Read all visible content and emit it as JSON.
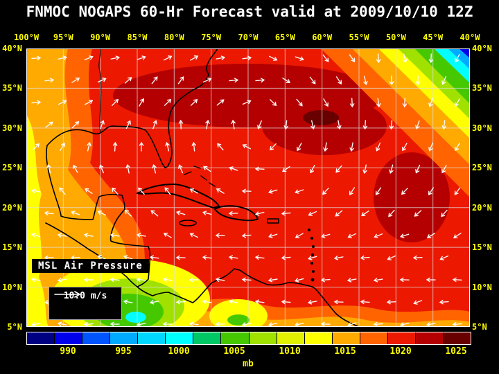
{
  "title": "FNMOC NOGAPS 60-Hr Forecast valid at 2009/10/10 12Z",
  "axes": {
    "lon_labels": [
      "100°W",
      "95°W",
      "90°W",
      "85°W",
      "80°W",
      "75°W",
      "70°W",
      "65°W",
      "60°W",
      "55°W",
      "50°W",
      "45°W",
      "40°W"
    ],
    "lat_labels": [
      "40°N",
      "35°N",
      "30°N",
      "25°N",
      "20°N",
      "15°N",
      "10°N",
      "5°N"
    ],
    "label_color": "#ffff00"
  },
  "map": {
    "field_label": "MSL Air Pressure",
    "wind_legend_label": "10.0 m/s",
    "wind_arrow_color": "#ffffff",
    "coastline_color": "#000000",
    "grid_color": "#e0e0e0",
    "border_color": "#ffffff"
  },
  "colorbar": {
    "tick_labels": [
      "990",
      "995",
      "1000",
      "1005",
      "1010",
      "1015",
      "1020",
      "1025"
    ],
    "unit": "mb",
    "colors": [
      "#000082",
      "#0000eb",
      "#0055ff",
      "#00aaff",
      "#00d7ff",
      "#00ffff",
      "#00c864",
      "#46c800",
      "#a0e100",
      "#e1ef00",
      "#ffff00",
      "#ffaa00",
      "#ff6400",
      "#ec1800",
      "#b40000",
      "#690000"
    ]
  }
}
